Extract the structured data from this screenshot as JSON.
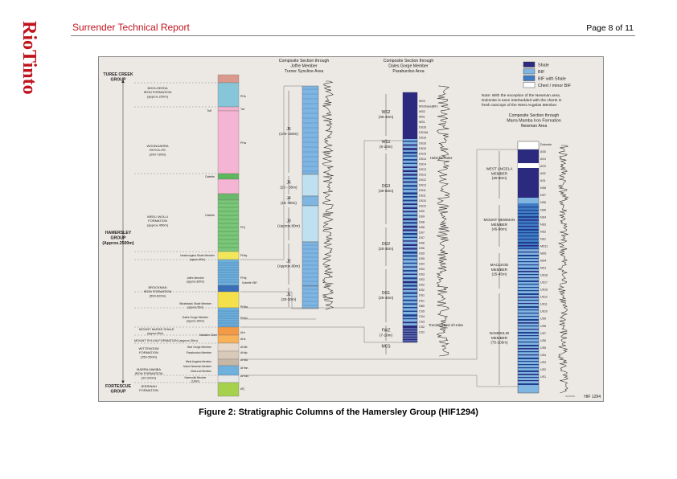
{
  "header": {
    "brand": "RioTinto",
    "title": "Surrender Technical Report",
    "page": "Page 8 of 11"
  },
  "figure": {
    "caption": "Figure 2: Stratigraphic Columns of the Hamersley Group (HIF1294)",
    "code": "HIF 1294",
    "groups": {
      "turee": [
        "TUREE CREEK",
        "GROUP"
      ],
      "hamersley": [
        "HAMERSLEY",
        "GROUP",
        "(Approx.2500m)"
      ],
      "fortescue": [
        "FORTESCUE",
        "GROUP"
      ]
    },
    "formations": {
      "boolgeeda": [
        "BOOLGEEDA",
        "IRON FORMATION",
        "(approx.220m)"
      ],
      "woongarra": [
        "WOONGARRA",
        "RHYOLITE",
        "(200-730m)"
      ],
      "weeli": [
        "WEELI WOLLI",
        "FORMATION",
        "(approx.450m)"
      ],
      "brockman": [
        "BROCKMAN",
        "IRON FORMATION",
        "(500-620m)"
      ],
      "mcrae": "MOUNT McRAE SHALE",
      "mcrae_thk": "(approx.50m)",
      "sylvia": "MOUNT SYLVIA FORMATION",
      "sylvia_thk": "(approx.30m)",
      "wittenoom": [
        "WITTENOOM",
        "FORMATION",
        "(150-350m)"
      ],
      "marra": [
        "MARRA MAMBA",
        "IRON FORMATION",
        "(20-230m)"
      ],
      "jeerinah": [
        "JEERINAH",
        "FORMATION"
      ]
    },
    "members": {
      "tuff": "Tuff",
      "dolerite1": "Dolerite",
      "dolerite2": "Dolerite",
      "yandi": "Yandicoogina Shale Member",
      "yandi_thk": "(approx.60m)",
      "joffre": [
        "Joffre Member",
        "(approx.360m)"
      ],
      "dolerite_sill": "Dolerite Sill?",
      "whaleback": [
        "Whaleback Shale Member",
        "(approx.50m)"
      ],
      "dales": [
        "Dales Gorge Member",
        "(approx.150m)"
      ],
      "mcrae_chert": "Madden Chert",
      "bee": "Bee Gorge Member",
      "paraburdoo": "Paraburdoo Member",
      "westang": "West Angelas Member",
      "newman": "Mount Newman Member",
      "macleod": "MacLeod Member",
      "nammuldi": [
        "Nammuldi Member",
        "(130m)"
      ]
    },
    "codes": [
      "PHb",
      "Twf",
      "PHw",
      "PHj",
      "PHby",
      "PHbj",
      "PHbw",
      "PHbd",
      "AHr",
      "AHs",
      "AHdb",
      "AHdp",
      "AHdw",
      "AHmn",
      "AHmm",
      "AFj"
    ],
    "joffre_section": {
      "title": [
        "Composite Section through",
        "Joffre Member",
        "Turner Syncline Area"
      ],
      "units": [
        {
          "name": "J6",
          "thk": "(100-150m)"
        },
        {
          "name": "J5",
          "thk": "(20 - 30m)"
        },
        {
          "name": "J4",
          "thk": "(15 -30m)"
        },
        {
          "name": "J3",
          "thk": "(Approx.80m)"
        },
        {
          "name": "J2",
          "thk": "(Approx.80m)"
        },
        {
          "name": "J1",
          "thk": "(20-30m)"
        }
      ]
    },
    "dales_section": {
      "title": [
        "Composite Section through",
        "Dales Gorge Member",
        "Paraburdoo Area"
      ],
      "units": [
        {
          "name": "WS2",
          "thk": "(30-40m)"
        },
        {
          "name": "WS1",
          "thk": "(6-10m)"
        },
        {
          "name": "DG3",
          "thk": "(30-50m)"
        },
        {
          "name": "DG2",
          "thk": "(20-30m)"
        },
        {
          "name": "DG1",
          "thk": "(25-40m)"
        },
        {
          "name": "FWZ",
          "thk": "(7-10m)"
        },
        {
          "name": "MCS",
          "thk": ""
        }
      ],
      "beds": [
        "WS3",
        "WS3base(BIF)",
        "WS2",
        "WS1",
        "WS1",
        "DS16",
        "DS15A",
        "DS16",
        "DS16",
        "DS15",
        "DS15",
        "DS14",
        "DS14",
        "DS13",
        "DS13",
        "DS12",
        "DS12",
        "DS11",
        "DS11",
        "DS10",
        "DS10",
        "DS9",
        "DS9",
        "DS8",
        "DS8",
        "DS7",
        "DS7",
        "DS6",
        "DS6",
        "DS5",
        "DS5",
        "DS4",
        "DS4",
        "DS3",
        "DS3",
        "DS2",
        "DS2",
        "DS1",
        "DS1",
        "DB0",
        "CS5",
        "CS4",
        "CS3",
        "CS2",
        "CS1"
      ],
      "notes": {
        "holes1": "Hulsell's Holes",
        "holes2": "Trendall's Bed of Holes"
      }
    },
    "marra_section": {
      "title": [
        "Composite Section through",
        "Marra Mamba Iron Formation",
        "Newman Area"
      ],
      "units": [
        {
          "name": [
            "WEST ANGELA",
            "MEMBER",
            "(30-50m)"
          ]
        },
        {
          "name": [
            "MOUNT NEWMAN",
            "MEMBER",
            "(45-98m)"
          ]
        },
        {
          "name": [
            "MACLEOD",
            "MEMBER",
            "(25-45m)"
          ]
        },
        {
          "name": [
            "NAMMULDI",
            "MEMBER",
            "(75-105m)"
          ]
        }
      ],
      "beds": [
        "Dolomite",
        "AS5",
        "AS4",
        "AS3",
        "AS2",
        "AS1",
        "NS8",
        "NS7",
        "NS6",
        "NS5",
        "NS4",
        "NS3",
        "NS2",
        "NS1",
        "MS11",
        "MS5",
        "MS4",
        "MS1",
        "US18",
        "US17",
        "US16",
        "US12",
        "US11",
        "US10",
        "US9",
        "US8",
        "US7",
        "US6",
        "US5",
        "US4",
        "US3",
        "US2",
        "US1"
      ]
    },
    "legend": [
      {
        "label": "Shale",
        "color": "#2b2a7e"
      },
      {
        "label": "BIF",
        "color": "#7fb5e0"
      },
      {
        "label": "BIF with Shale",
        "color": "#3f7cc4"
      },
      {
        "label": "Chert / minor BIF",
        "color": "#ffffff"
      }
    ],
    "note": [
      "Note: With the exception of the Newman area,",
      "Dolomite is seen interbedded with the cherts in",
      "fresh outcrops of the West Angelas Member"
    ]
  }
}
